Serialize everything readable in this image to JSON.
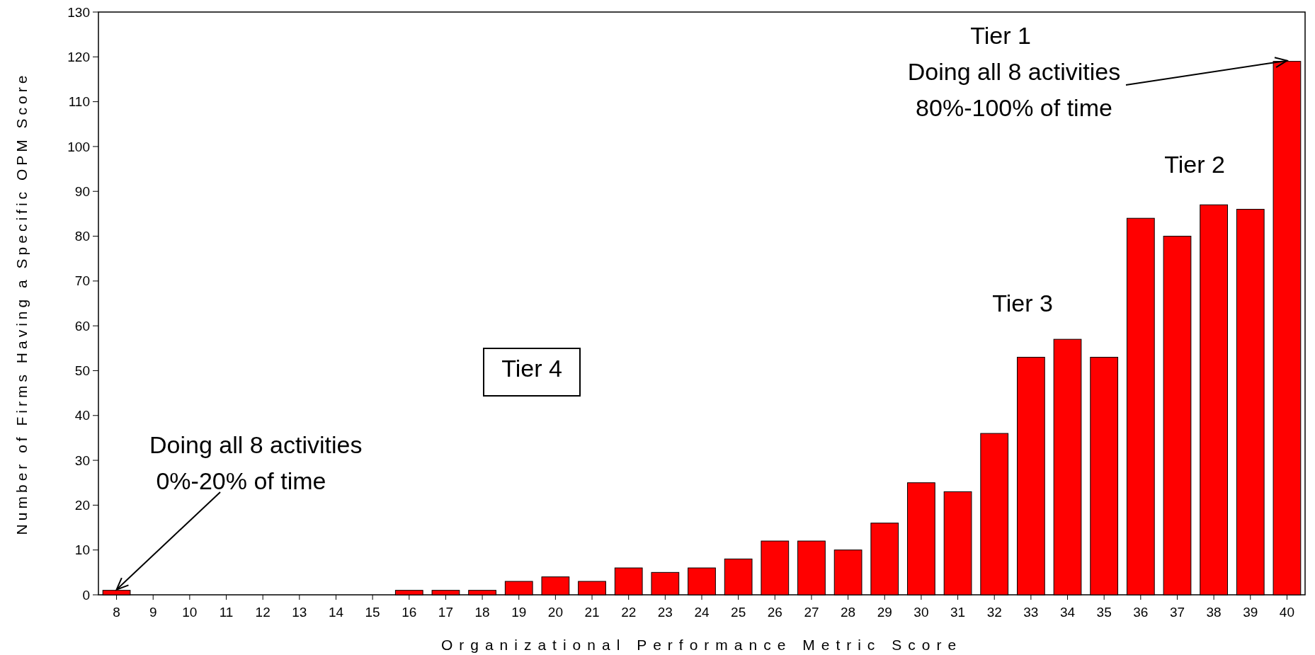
{
  "chart_data": {
    "type": "bar",
    "xlabel": "Organizational Performance Metric Score",
    "ylabel": "Number of Firms Having a Specific OPM Score",
    "categories": [
      "8",
      "9",
      "10",
      "11",
      "12",
      "13",
      "14",
      "15",
      "16",
      "17",
      "18",
      "19",
      "20",
      "21",
      "22",
      "23",
      "24",
      "25",
      "26",
      "27",
      "28",
      "29",
      "30",
      "31",
      "32",
      "33",
      "34",
      "35",
      "36",
      "37",
      "38",
      "39",
      "40"
    ],
    "values": [
      1,
      0,
      0,
      0,
      0,
      0,
      0,
      0,
      1,
      1,
      1,
      3,
      4,
      3,
      6,
      5,
      6,
      8,
      12,
      12,
      10,
      16,
      25,
      23,
      36,
      53,
      57,
      53,
      84,
      80,
      87,
      86,
      119
    ],
    "color": "#ff0000",
    "ylim": [
      0,
      130
    ],
    "yticks": [
      0,
      10,
      20,
      30,
      40,
      50,
      60,
      70,
      80,
      90,
      100,
      110,
      120,
      130
    ],
    "annotations": [
      "Tier 1",
      {
        "text": "Doing all 8 activities\n80%-100% of time",
        "x": "40",
        "y": 119
      },
      "Tier 2",
      "Tier 3",
      "Tier 4",
      {
        "text": "Doing all 8 activities\n 0%-20% of time",
        "x": "8",
        "y": 1
      }
    ]
  }
}
